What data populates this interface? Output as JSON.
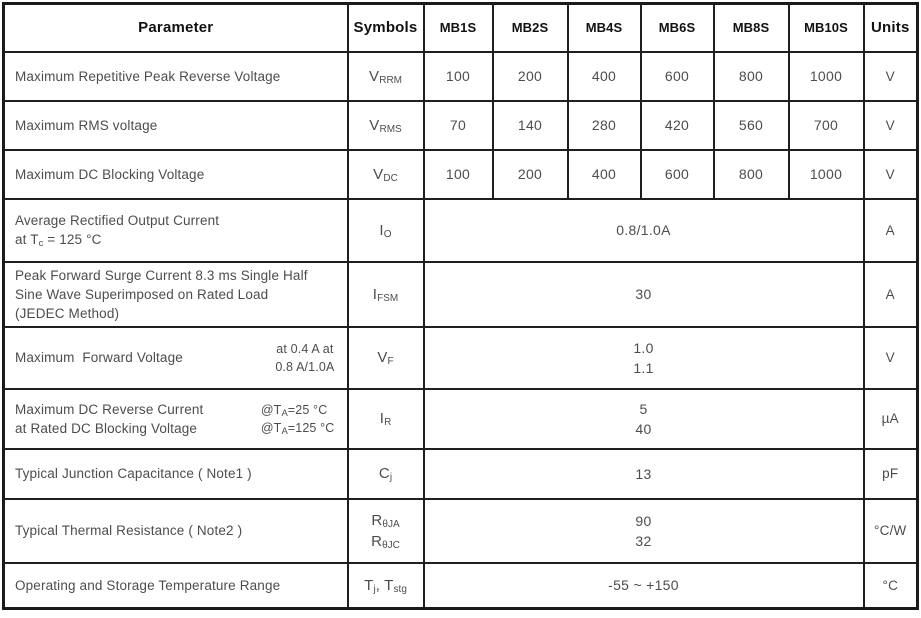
{
  "table": {
    "columns": [
      "Parameter",
      "Symbols",
      "MB1S",
      "MB2S",
      "MB4S",
      "MB6S",
      "MB8S",
      "MB10S",
      "Units"
    ],
    "rows": [
      {
        "id": "vrrm",
        "parameter_lines": [
          "Maximum Repetitive Peak Reverse Voltage"
        ],
        "symbol_lines": [
          "V_{RRM}"
        ],
        "values": [
          "100",
          "200",
          "400",
          "600",
          "800",
          "1000"
        ],
        "unit": "V"
      },
      {
        "id": "vrms",
        "parameter_lines": [
          "Maximum RMS voltage"
        ],
        "symbol_lines": [
          "V_{RMS}"
        ],
        "values": [
          "70",
          "140",
          "280",
          "420",
          "560",
          "700"
        ],
        "unit": "V"
      },
      {
        "id": "vdc",
        "parameter_lines": [
          "Maximum DC Blocking Voltage"
        ],
        "symbol_lines": [
          "V_{DC}"
        ],
        "values": [
          "100",
          "200",
          "400",
          "600",
          "800",
          "1000"
        ],
        "unit": "V"
      },
      {
        "id": "io",
        "parameter_lines": [
          "Average Rectified Output Current",
          "at T_{c} = 125 °C"
        ],
        "symbol_lines": [
          "I_{O}"
        ],
        "merged_value_lines": [
          "0.8/1.0A"
        ],
        "unit": "A"
      },
      {
        "id": "ifsm",
        "parameter_lines": [
          "Peak Forward Surge Current 8.3 ms Single Half",
          "Sine Wave Superimposed on Rated Load",
          "(JEDEC Method)"
        ],
        "symbol_lines": [
          "I_{FSM}"
        ],
        "merged_value_lines": [
          "30"
        ],
        "unit": "A"
      },
      {
        "id": "vf",
        "parameter_lines": [
          "Maximum  Forward Voltage"
        ],
        "condition_lines": [
          "at 0.4 A at",
          "0.8 A/1.0A"
        ],
        "condition_align": "center",
        "symbol_lines": [
          "V_{F}"
        ],
        "merged_value_lines": [
          "1.0",
          "1.1"
        ],
        "unit": "V"
      },
      {
        "id": "ir",
        "parameter_lines": [
          "Maximum DC Reverse Current",
          "at Rated DC Blocking Voltage"
        ],
        "condition_lines": [
          "@T_{A}=25 °C",
          "@T_{A}=125 °C"
        ],
        "condition_align": "left",
        "symbol_lines": [
          "I_{R}"
        ],
        "merged_value_lines": [
          "5",
          "40"
        ],
        "unit": "µA"
      },
      {
        "id": "cj",
        "parameter_lines": [
          "Typical Junction Capacitance ( Note1 )"
        ],
        "symbol_lines": [
          "C_{j}"
        ],
        "merged_value_lines": [
          "13"
        ],
        "unit": "pF"
      },
      {
        "id": "rth",
        "parameter_lines": [
          "Typical Thermal Resistance ( Note2 )"
        ],
        "symbol_lines": [
          "R_{θJA}",
          "R_{θJC}"
        ],
        "merged_value_lines": [
          "90",
          "32"
        ],
        "unit": "°C/W"
      },
      {
        "id": "tj-tstg",
        "parameter_lines": [
          "Operating and Storage Temperature Range"
        ],
        "symbol_lines": [
          "T_{j}, T_{stg}"
        ],
        "merged_value_lines": [
          "-55 ~ +150"
        ],
        "unit": "°C"
      }
    ]
  }
}
